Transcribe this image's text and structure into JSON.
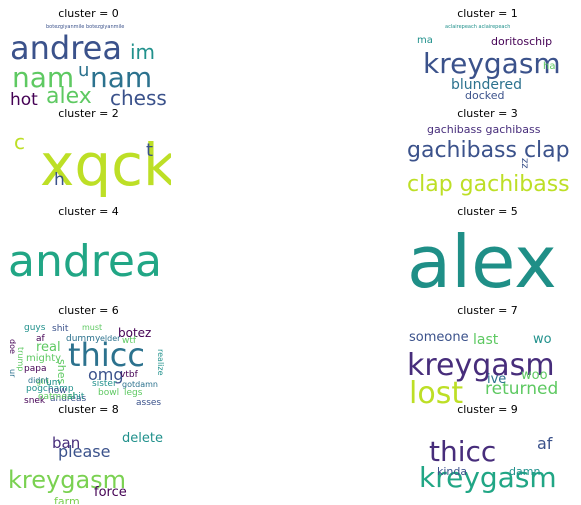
{
  "chart_data": [
    {
      "type": "wordcloud",
      "title": "cluster = 0",
      "words": [
        {
          "text": "andrea",
          "weight": 1.0,
          "color": "#3b528b"
        },
        {
          "text": "nam",
          "weight": 0.9,
          "color": "#5ec962"
        },
        {
          "text": "nam",
          "weight": 0.9,
          "color": "#2c728e"
        },
        {
          "text": "im",
          "weight": 0.45,
          "color": "#21918c"
        },
        {
          "text": "alex",
          "weight": 0.55,
          "color": "#5ec962"
        },
        {
          "text": "hot",
          "weight": 0.42,
          "color": "#440154"
        },
        {
          "text": "chess",
          "weight": 0.42,
          "color": "#3b528b"
        },
        {
          "text": "u",
          "weight": 0.4,
          "color": "#2c728e"
        },
        {
          "text": "botezgiyanmile botezgiyanmile",
          "weight": 0.05,
          "color": "#3b528b"
        }
      ]
    },
    {
      "type": "wordcloud",
      "title": "cluster = 1",
      "words": [
        {
          "text": "kreygasm",
          "weight": 1.0,
          "color": "#3b528b"
        },
        {
          "text": "blundered",
          "weight": 0.45,
          "color": "#2c728e"
        },
        {
          "text": "doritoschip",
          "weight": 0.35,
          "color": "#440154"
        },
        {
          "text": "docked",
          "weight": 0.35,
          "color": "#3b528b"
        },
        {
          "text": "ma",
          "weight": 0.3,
          "color": "#21918c"
        },
        {
          "text": "ha",
          "weight": 0.3,
          "color": "#5ec962"
        },
        {
          "text": "aclairepeach aclairepeach",
          "weight": 0.05,
          "color": "#21918c"
        }
      ]
    },
    {
      "type": "wordcloud",
      "title": "cluster = 2",
      "words": [
        {
          "text": "xqck",
          "weight": 1.0,
          "color": "#bddf26"
        },
        {
          "text": "c",
          "weight": 0.4,
          "color": "#bddf26"
        },
        {
          "text": "t",
          "weight": 0.4,
          "color": "#3b528b"
        },
        {
          "text": "h",
          "weight": 0.4,
          "color": "#3b528b"
        }
      ]
    },
    {
      "type": "wordcloud",
      "title": "cluster = 3",
      "words": [
        {
          "text": "gachibass clap",
          "weight": 1.0,
          "color": "#3b528b"
        },
        {
          "text": "clap gachibass",
          "weight": 1.0,
          "color": "#bddf26"
        },
        {
          "text": "gachibass gachibass",
          "weight": 0.55,
          "color": "#472d7b"
        },
        {
          "text": "zz",
          "weight": 0.4,
          "color": "#3b528b"
        }
      ]
    },
    {
      "type": "wordcloud",
      "title": "cluster = 4",
      "words": [
        {
          "text": "andrea",
          "weight": 1.0,
          "color": "#21a685"
        }
      ]
    },
    {
      "type": "wordcloud",
      "title": "cluster = 5",
      "words": [
        {
          "text": "alex",
          "weight": 1.0,
          "color": "#1f8f87"
        }
      ]
    },
    {
      "type": "wordcloud",
      "title": "cluster = 6",
      "words": [
        {
          "text": "thicc",
          "weight": 1.0,
          "color": "#2c728e"
        },
        {
          "text": "omg",
          "weight": 0.45,
          "color": "#3b528b"
        },
        {
          "text": "botez",
          "weight": 0.35,
          "color": "#440154"
        },
        {
          "text": "real",
          "weight": 0.3,
          "color": "#5ec962"
        },
        {
          "text": "shes",
          "weight": 0.3,
          "color": "#5ec962"
        },
        {
          "text": "guys",
          "weight": 0.25,
          "color": "#21918c"
        },
        {
          "text": "shit",
          "weight": 0.25,
          "color": "#3b528b"
        },
        {
          "text": "must",
          "weight": 0.2,
          "color": "#5ec962"
        },
        {
          "text": "af",
          "weight": 0.25,
          "color": "#440154"
        },
        {
          "text": "dummy",
          "weight": 0.22,
          "color": "#2c728e"
        },
        {
          "text": "elder",
          "weight": 0.22,
          "color": "#2c728e"
        },
        {
          "text": "wtf",
          "weight": 0.2,
          "color": "#5ec962"
        },
        {
          "text": "mighty",
          "weight": 0.22,
          "color": "#5ec962"
        },
        {
          "text": "papa",
          "weight": 0.22,
          "color": "#440154"
        },
        {
          "text": "um",
          "weight": 0.22,
          "color": "#21918c"
        },
        {
          "text": "girl",
          "weight": 0.22,
          "color": "#5ec962"
        },
        {
          "text": "vtbf",
          "weight": 0.2,
          "color": "#440154"
        },
        {
          "text": "gotdamn",
          "weight": 0.2,
          "color": "#2c728e"
        },
        {
          "text": "sister",
          "weight": 0.2,
          "color": "#21918c"
        },
        {
          "text": "legs",
          "weight": 0.2,
          "color": "#5ec962"
        },
        {
          "text": "asses",
          "weight": 0.2,
          "color": "#3b528b"
        },
        {
          "text": "bowl",
          "weight": 0.2,
          "color": "#5ec962"
        },
        {
          "text": "andreas",
          "weight": 0.2,
          "color": "#3b528b"
        },
        {
          "text": "pogchamp",
          "weight": 0.2,
          "color": "#21918c"
        },
        {
          "text": "snek",
          "weight": 0.2,
          "color": "#440154"
        },
        {
          "text": "didnt",
          "weight": 0.2,
          "color": "#2c728e"
        },
        {
          "text": "now",
          "weight": 0.2,
          "color": "#3b528b"
        },
        {
          "text": "doe",
          "weight": 0.2,
          "color": "#440154"
        },
        {
          "text": "ur",
          "weight": 0.2,
          "color": "#2c728e"
        },
        {
          "text": "trump",
          "weight": 0.18,
          "color": "#5ec962"
        },
        {
          "text": "realize",
          "weight": 0.18,
          "color": "#21918c"
        },
        {
          "text": "oatmeal",
          "weight": 0.18,
          "color": "#5ec962"
        },
        {
          "text": "shit",
          "weight": 0.18,
          "color": "#21918c"
        }
      ]
    },
    {
      "type": "wordcloud",
      "title": "cluster = 7",
      "words": [
        {
          "text": "kreygasm",
          "weight": 1.0,
          "color": "#472d7b"
        },
        {
          "text": "lost",
          "weight": 0.95,
          "color": "#bddf26"
        },
        {
          "text": "returned",
          "weight": 0.55,
          "color": "#5ec962"
        },
        {
          "text": "last",
          "weight": 0.45,
          "color": "#5ec962"
        },
        {
          "text": "someone",
          "weight": 0.4,
          "color": "#3b528b"
        },
        {
          "text": "wo",
          "weight": 0.4,
          "color": "#21918c"
        },
        {
          "text": "woo",
          "weight": 0.4,
          "color": "#5ec962"
        },
        {
          "text": "ive",
          "weight": 0.4,
          "color": "#2c728e"
        }
      ]
    },
    {
      "type": "wordcloud",
      "title": "cluster = 8",
      "words": [
        {
          "text": "kreygasm",
          "weight": 1.0,
          "color": "#7ad151"
        },
        {
          "text": "please",
          "weight": 0.55,
          "color": "#3b528b"
        },
        {
          "text": "ban",
          "weight": 0.5,
          "color": "#472d7b"
        },
        {
          "text": "delete",
          "weight": 0.45,
          "color": "#21918c"
        },
        {
          "text": "force",
          "weight": 0.45,
          "color": "#440154"
        },
        {
          "text": "farm",
          "weight": 0.4,
          "color": "#7ad151"
        }
      ]
    },
    {
      "type": "wordcloud",
      "title": "cluster = 9",
      "words": [
        {
          "text": "thicc",
          "weight": 1.0,
          "color": "#472d7b"
        },
        {
          "text": "kreygasm",
          "weight": 1.0,
          "color": "#21a685"
        },
        {
          "text": "af",
          "weight": 0.55,
          "color": "#3b528b"
        },
        {
          "text": "kinda",
          "weight": 0.4,
          "color": "#3b528b"
        },
        {
          "text": "damn",
          "weight": 0.4,
          "color": "#21918c"
        }
      ]
    }
  ]
}
